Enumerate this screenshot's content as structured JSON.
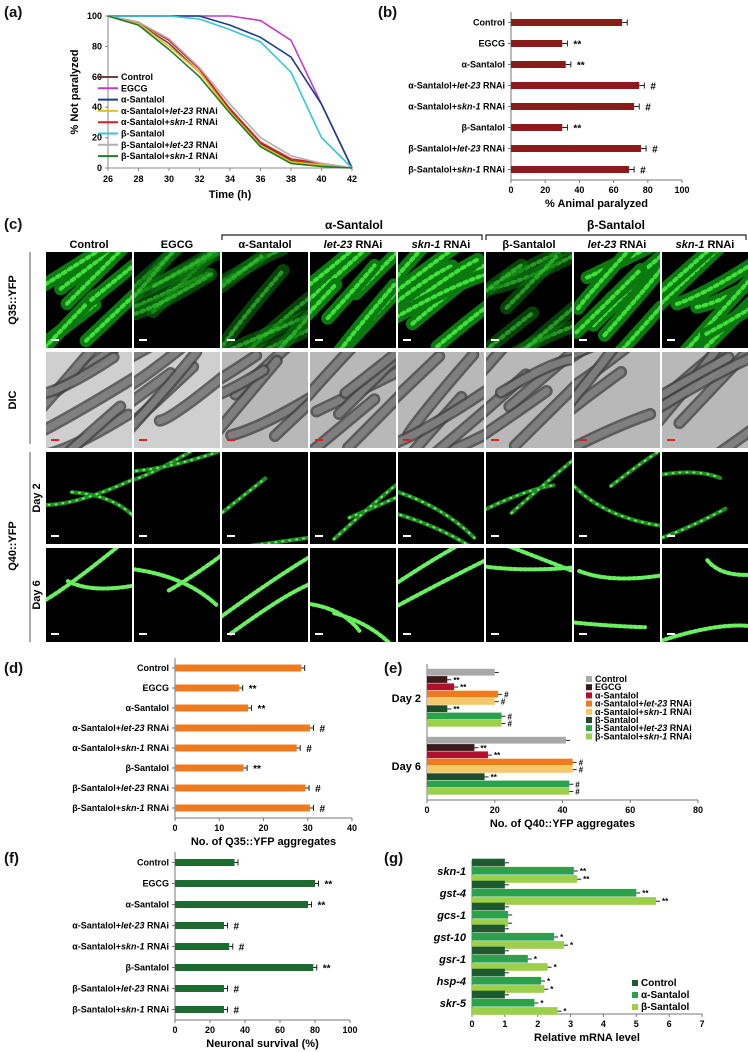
{
  "panel_labels": {
    "a": "(a)",
    "b": "(b)",
    "c": "(c)",
    "d": "(d)",
    "e": "(e)",
    "f": "(f)",
    "g": "(g)"
  },
  "colors": {
    "orange": "#f07a1f",
    "darkred": "#8b1a1a",
    "green": "#1e6b32",
    "grey": "#a8a8a8"
  },
  "images": {
    "columns": [
      "Control",
      "EGCG",
      "α-Santalol",
      "let-23 RNAi",
      "skn-1 RNAi",
      "β-Santalol",
      "let-23 RNAi",
      "skn-1 RNAi"
    ],
    "group_a": "α-Santalol",
    "group_b": "β-Santalol",
    "rows": [
      "Q35::YFP",
      "DIC",
      "Day 2",
      "Day 6"
    ],
    "side_q40": "Q40::YFP"
  },
  "chart_data": [
    {
      "id": "a",
      "type": "line",
      "xlabel": "Time (h)",
      "ylabel": "% Not paralyzed",
      "x": [
        26,
        28,
        30,
        32,
        34,
        36,
        38,
        40,
        42
      ],
      "xlim": [
        26,
        42
      ],
      "ylim": [
        0,
        100
      ],
      "xticks": [
        26,
        28,
        30,
        32,
        34,
        36,
        38,
        40,
        42
      ],
      "yticks": [
        0,
        20,
        40,
        60,
        80,
        100
      ],
      "series": [
        {
          "name": "Control",
          "color": "#6d4040",
          "values": [
            100,
            95,
            82,
            63,
            38,
            16,
            5,
            2,
            0
          ]
        },
        {
          "name": "EGCG",
          "color": "#c43cc4",
          "values": [
            100,
            100,
            100,
            100,
            100,
            97,
            84,
            42,
            0
          ]
        },
        {
          "name": "α-Santalol",
          "color": "#1f3d8a",
          "values": [
            100,
            100,
            100,
            100,
            94,
            86,
            73,
            42,
            0
          ]
        },
        {
          "name": "α-Santalol+let-23 RNAi",
          "color": "#e8c11f",
          "values": [
            100,
            95,
            80,
            63,
            37,
            15,
            4,
            2,
            0
          ]
        },
        {
          "name": "α-Santalol+skn-1 RNAi",
          "color": "#d62020",
          "values": [
            100,
            96,
            84,
            65,
            39,
            17,
            6,
            3,
            0
          ]
        },
        {
          "name": "β-Santalol",
          "color": "#35c7d8",
          "values": [
            100,
            100,
            100,
            98,
            91,
            83,
            63,
            20,
            0
          ]
        },
        {
          "name": "β-Santalol+let-23 RNAi",
          "color": "#b0b0b0",
          "values": [
            100,
            96,
            85,
            66,
            42,
            20,
            8,
            3,
            0
          ]
        },
        {
          "name": "β-Santalol+skn-1 RNAi",
          "color": "#1f7a2a",
          "values": [
            100,
            94,
            78,
            60,
            36,
            14,
            3,
            1,
            0
          ]
        }
      ]
    },
    {
      "id": "b",
      "type": "bar",
      "xlabel": "% Animal paralyzed",
      "xlim": [
        0,
        100
      ],
      "xticks": [
        0,
        20,
        40,
        60,
        80,
        100
      ],
      "categories": [
        "Control",
        "EGCG",
        "α-Santalol",
        "α-Santalol+let-23 RNAi",
        "α-Santalol+skn-1 RNAi",
        "β-Santalol",
        "β-Santalol+let-23 RNAi",
        "β-Santalol+skn-1 RNAi"
      ],
      "values": [
        65,
        30,
        32,
        75,
        72,
        30,
        76,
        69
      ],
      "errors": [
        3,
        3,
        3,
        3,
        3,
        3,
        3,
        3
      ],
      "annotations": [
        "",
        "**",
        "**",
        "#",
        "#",
        "**",
        "#",
        "#"
      ]
    },
    {
      "id": "d",
      "type": "bar",
      "xlabel": "No. of Q35::YFP aggregates",
      "xlim": [
        0,
        40
      ],
      "xticks": [
        0,
        10,
        20,
        30,
        40
      ],
      "categories": [
        "Control",
        "EGCG",
        "α-Santalol",
        "α-Santalol+let-23 RNAi",
        "α-Santalol+skn-1 RNAi",
        "β-Santalol",
        "β-Santalol+let-23 RNAi",
        "β-Santalol+skn-1 RNAi"
      ],
      "values": [
        28.5,
        14.5,
        16.5,
        30.5,
        27.5,
        15.5,
        29.5,
        30.5
      ],
      "errors": [
        0.8,
        0.8,
        0.8,
        0.8,
        0.8,
        0.8,
        0.8,
        0.8
      ],
      "annotations": [
        "",
        "**",
        "**",
        "#",
        "#",
        "**",
        "#",
        "#"
      ]
    },
    {
      "id": "e",
      "type": "bar",
      "xlabel": "No. of Q40::YFP aggregates",
      "xlim": [
        0,
        80
      ],
      "xticks": [
        0,
        20,
        40,
        60,
        80
      ],
      "categories": [
        "Day 2",
        "Day 6"
      ],
      "series": [
        {
          "name": "Control",
          "color": "#a8a8a8",
          "values": [
            20,
            41
          ],
          "annotations": [
            "",
            ""
          ]
        },
        {
          "name": "EGCG",
          "color": "#3b1a1a",
          "values": [
            6,
            14
          ],
          "annotations": [
            "**",
            "**"
          ]
        },
        {
          "name": "α-Santalol",
          "color": "#b0102a",
          "values": [
            8,
            18
          ],
          "annotations": [
            "**",
            "**"
          ]
        },
        {
          "name": "α-Santalol+let-23 RNAi",
          "color": "#f07a1f",
          "values": [
            21,
            43
          ],
          "annotations": [
            "#",
            "#"
          ]
        },
        {
          "name": "α-Santalol+skn-1 RNAi",
          "color": "#f5c86a",
          "values": [
            20,
            43
          ],
          "annotations": [
            "#",
            "#"
          ]
        },
        {
          "name": "β-Santalol",
          "color": "#1d4d2a",
          "values": [
            6,
            17
          ],
          "annotations": [
            "**",
            "**"
          ]
        },
        {
          "name": "β-Santalol+let-23 RNAi",
          "color": "#2aa14a",
          "values": [
            22,
            42
          ],
          "annotations": [
            "#",
            "#"
          ]
        },
        {
          "name": "β-Santalol+skn-1 RNAi",
          "color": "#9ccf4a",
          "values": [
            22,
            42
          ],
          "annotations": [
            "#",
            "#"
          ]
        }
      ]
    },
    {
      "id": "f",
      "type": "bar",
      "xlabel": "Neuronal  survival (%)",
      "xlim": [
        0,
        100
      ],
      "xticks": [
        0,
        20,
        40,
        60,
        80,
        100
      ],
      "categories": [
        "Control",
        "EGCG",
        "α-Santalol",
        "α-Santalol+let-23 RNAi",
        "α-Santalol+skn-1 RNAi",
        "β-Santalol",
        "β-Santalol+let-23 RNAi",
        "β-Santalol+skn-1 RNAi"
      ],
      "values": [
        34,
        80,
        76,
        28,
        31,
        79,
        28,
        28
      ],
      "errors": [
        2,
        2,
        2,
        2,
        2,
        2,
        2,
        2
      ],
      "annotations": [
        "",
        "**",
        "**",
        "#",
        "#",
        "**",
        "#",
        "#"
      ]
    },
    {
      "id": "g",
      "type": "bar",
      "xlabel": "Relative mRNA level",
      "xlim": [
        0,
        7
      ],
      "xticks": [
        0,
        1,
        2,
        3,
        4,
        5,
        6,
        7
      ],
      "categories": [
        "skn-1",
        "gst-4",
        "gcs-1",
        "gst-10",
        "gsr-1",
        "hsp-4",
        "skr-5"
      ],
      "series": [
        {
          "name": "Control",
          "color": "#1d5a30",
          "values": [
            1,
            1,
            1,
            1,
            1,
            1,
            1
          ],
          "annotations": [
            "",
            "",
            "",
            "",
            "",
            "",
            ""
          ]
        },
        {
          "name": "α-Santalol",
          "color": "#2aa14a",
          "values": [
            3.1,
            5.0,
            1.1,
            2.5,
            1.7,
            2.1,
            1.9
          ],
          "annotations": [
            "**",
            "**",
            "",
            "*",
            "*",
            "*",
            "*"
          ]
        },
        {
          "name": "β-Santalol",
          "color": "#9ccf4a",
          "values": [
            3.2,
            5.6,
            1.1,
            2.8,
            2.3,
            2.2,
            2.6
          ],
          "annotations": [
            "**",
            "**",
            "",
            "*",
            "*",
            "*",
            "*"
          ]
        }
      ]
    }
  ]
}
